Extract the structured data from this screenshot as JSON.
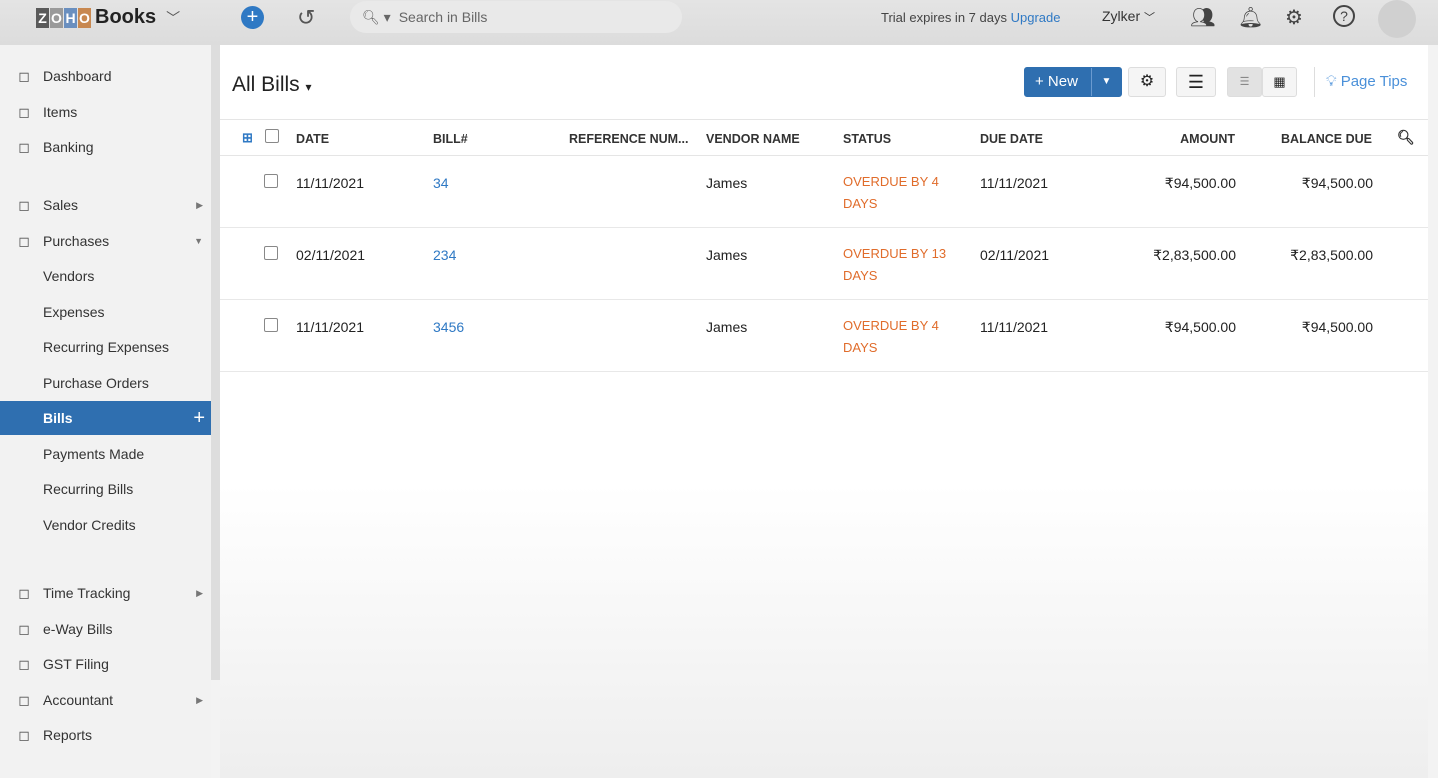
{
  "header": {
    "logo_letters": [
      "Z",
      "O",
      "H",
      "O"
    ],
    "logo_text": "Books",
    "search_placeholder": "Search in Bills",
    "trial_text": "Trial expires in 7 days",
    "upgrade": "Upgrade",
    "org": "Zylker"
  },
  "sidebar": {
    "items": [
      {
        "label": "Dashboard",
        "icon": "dashboard-icon"
      },
      {
        "label": "Items",
        "icon": "basket-icon"
      },
      {
        "label": "Banking",
        "icon": "bank-icon"
      },
      {
        "label": "Sales",
        "icon": "cart-icon"
      },
      {
        "label": "Purchases",
        "icon": "bag-icon"
      },
      {
        "label": "Vendors"
      },
      {
        "label": "Expenses"
      },
      {
        "label": "Recurring Expenses"
      },
      {
        "label": "Purchase Orders"
      },
      {
        "label": "Bills"
      },
      {
        "label": "Payments Made"
      },
      {
        "label": "Recurring Bills"
      },
      {
        "label": "Vendor Credits"
      },
      {
        "label": "Time Tracking",
        "icon": "timer-icon"
      },
      {
        "label": "e-Way Bills",
        "icon": "truck-icon"
      },
      {
        "label": "GST Filing",
        "icon": "document-icon"
      },
      {
        "label": "Accountant",
        "icon": "user-icon"
      },
      {
        "label": "Reports",
        "icon": "chart-icon"
      }
    ]
  },
  "main": {
    "title": "All Bills",
    "new_label": "+ New",
    "page_tips": "Page Tips",
    "columns": [
      "DATE",
      "BILL#",
      "REFERENCE NUM...",
      "VENDOR NAME",
      "STATUS",
      "DUE DATE",
      "AMOUNT",
      "BALANCE DUE"
    ],
    "rows": [
      {
        "date": "11/11/2021",
        "bill": "34",
        "ref": "",
        "vendor": "James",
        "status": "OVERDUE BY 4 DAYS",
        "due": "11/11/2021",
        "amount": "₹94,500.00",
        "balance": "₹94,500.00"
      },
      {
        "date": "02/11/2021",
        "bill": "234",
        "ref": "",
        "vendor": "James",
        "status": "OVERDUE BY 13 DAYS",
        "due": "02/11/2021",
        "amount": "₹2,83,500.00",
        "balance": "₹2,83,500.00"
      },
      {
        "date": "11/11/2021",
        "bill": "3456",
        "ref": "",
        "vendor": "James",
        "status": "OVERDUE BY 4 DAYS",
        "due": "11/11/2021",
        "amount": "₹94,500.00",
        "balance": "₹94,500.00"
      }
    ]
  },
  "colors": {
    "accent": "#2f6fb0",
    "overdue": "#e06c2b",
    "link": "#2f79c4"
  }
}
